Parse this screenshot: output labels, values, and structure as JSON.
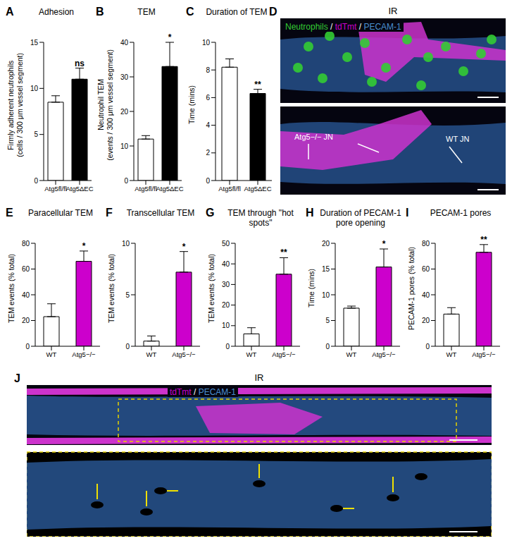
{
  "chart_data": [
    {
      "panel": "A",
      "type": "bar",
      "title": "Adhesion",
      "y_label": [
        "Firmly adherent neutrophils",
        "(cells / 300 μm vessel segment)"
      ],
      "categories": [
        "Atg5fl/fl",
        "Atg5ΔEC"
      ],
      "values": [
        8.5,
        11
      ],
      "error": [
        0.7,
        1.2
      ],
      "colors": [
        "#ffffff",
        "#000000"
      ],
      "ylim": [
        0,
        15
      ],
      "yticks": [
        0,
        5,
        10,
        15
      ],
      "annotations": [
        {
          "category": "Atg5ΔEC",
          "text": "ns"
        }
      ]
    },
    {
      "panel": "B",
      "type": "bar",
      "title": "TEM",
      "y_label": [
        "Neutrophil TEM",
        "(events / 300 μm vessel segment)"
      ],
      "categories": [
        "Atg5fl/fl",
        "Atg5ΔEC"
      ],
      "values": [
        12,
        33
      ],
      "error": [
        1,
        7
      ],
      "colors": [
        "#ffffff",
        "#000000"
      ],
      "ylim": [
        0,
        40
      ],
      "yticks": [
        0,
        10,
        20,
        30,
        40
      ],
      "annotations": [
        {
          "category": "Atg5ΔEC",
          "text": "*"
        }
      ]
    },
    {
      "panel": "C",
      "type": "bar",
      "title": "Duration of TEM",
      "y_label": [
        "Time (mins)"
      ],
      "categories": [
        "Atg5fl/fl",
        "Atg5ΔEC"
      ],
      "values": [
        8.2,
        6.3
      ],
      "error": [
        0.6,
        0.3
      ],
      "colors": [
        "#ffffff",
        "#000000"
      ],
      "ylim": [
        0,
        10
      ],
      "yticks": [
        0,
        2,
        4,
        6,
        8,
        10
      ],
      "annotations": [
        {
          "category": "Atg5ΔEC",
          "text": "**"
        }
      ]
    },
    {
      "panel": "E",
      "type": "bar",
      "title": "Paracellular TEM",
      "y_label": [
        "TEM events (% total)"
      ],
      "categories": [
        "WT",
        "Atg5−/−"
      ],
      "values": [
        23,
        66
      ],
      "error": [
        10,
        8
      ],
      "colors": [
        "#ffffff",
        "#cc00cc"
      ],
      "ylim": [
        0,
        80
      ],
      "yticks": [
        0,
        20,
        40,
        60,
        80
      ],
      "annotations": [
        {
          "category": "Atg5−/−",
          "text": "*"
        }
      ]
    },
    {
      "panel": "F",
      "type": "bar",
      "title": "Transcellular TEM",
      "y_label": [
        "TEM events (% total)"
      ],
      "categories": [
        "WT",
        "Atg5−/−"
      ],
      "values": [
        0.5,
        7.2
      ],
      "error": [
        0.5,
        2
      ],
      "colors": [
        "#ffffff",
        "#cc00cc"
      ],
      "ylim": [
        0,
        10
      ],
      "yticks": [
        0,
        5,
        10
      ],
      "annotations": [
        {
          "category": "Atg5−/−",
          "text": "*"
        }
      ]
    },
    {
      "panel": "G",
      "type": "bar",
      "title": "TEM through \"hot spots\"",
      "y_label": [
        "TEM events (% total)"
      ],
      "categories": [
        "WT",
        "Atg5−/−"
      ],
      "values": [
        6,
        35
      ],
      "error": [
        3,
        8
      ],
      "colors": [
        "#ffffff",
        "#cc00cc"
      ],
      "ylim": [
        0,
        50
      ],
      "yticks": [
        0,
        10,
        20,
        30,
        40,
        50
      ],
      "annotations": [
        {
          "category": "Atg5−/−",
          "text": "**"
        }
      ]
    },
    {
      "panel": "H",
      "type": "bar",
      "title": "Duration of PECAM-1 pore opening",
      "y_label": [
        "Time (mins)"
      ],
      "categories": [
        "WT",
        "Atg5−/−"
      ],
      "values": [
        7.4,
        15.4
      ],
      "error": [
        0.4,
        3.5
      ],
      "colors": [
        "#ffffff",
        "#cc00cc"
      ],
      "ylim": [
        0,
        20
      ],
      "yticks": [
        0,
        5,
        10,
        15,
        20
      ],
      "annotations": [
        {
          "category": "Atg5−/−",
          "text": "*"
        }
      ]
    },
    {
      "panel": "I",
      "type": "bar",
      "title": "PECAM-1 pores",
      "y_label": [
        "PECAM-1 pores (% total)"
      ],
      "categories": [
        "WT",
        "Atg5−/−"
      ],
      "values": [
        25,
        73
      ],
      "error": [
        5,
        6
      ],
      "colors": [
        "#ffffff",
        "#cc00cc"
      ],
      "ylim": [
        0,
        80
      ],
      "yticks": [
        0,
        20,
        40,
        60,
        80
      ],
      "annotations": [
        {
          "category": "Atg5−/−",
          "text": "**"
        }
      ]
    }
  ],
  "image_panels": [
    {
      "panel": "D",
      "title": "IR",
      "channels": [
        {
          "text": "Neutrophils",
          "color": "#33cc33"
        },
        {
          "text": " / ",
          "color": "#000000"
        },
        {
          "text": "tdTmt",
          "color": "#cc00cc"
        },
        {
          "text": " / ",
          "color": "#000000"
        },
        {
          "text": "PECAM-1",
          "color": "#4a8fd0"
        }
      ],
      "labels": [
        "Atg5−/− JN",
        "WT JN"
      ]
    },
    {
      "panel": "J",
      "title": "IR",
      "channels": [
        {
          "text": "tdTmt",
          "color": "#cc00cc"
        },
        {
          "text": " / ",
          "color": "#000000"
        },
        {
          "text": "PECAM-1",
          "color": "#4a8fd0"
        }
      ]
    }
  ]
}
